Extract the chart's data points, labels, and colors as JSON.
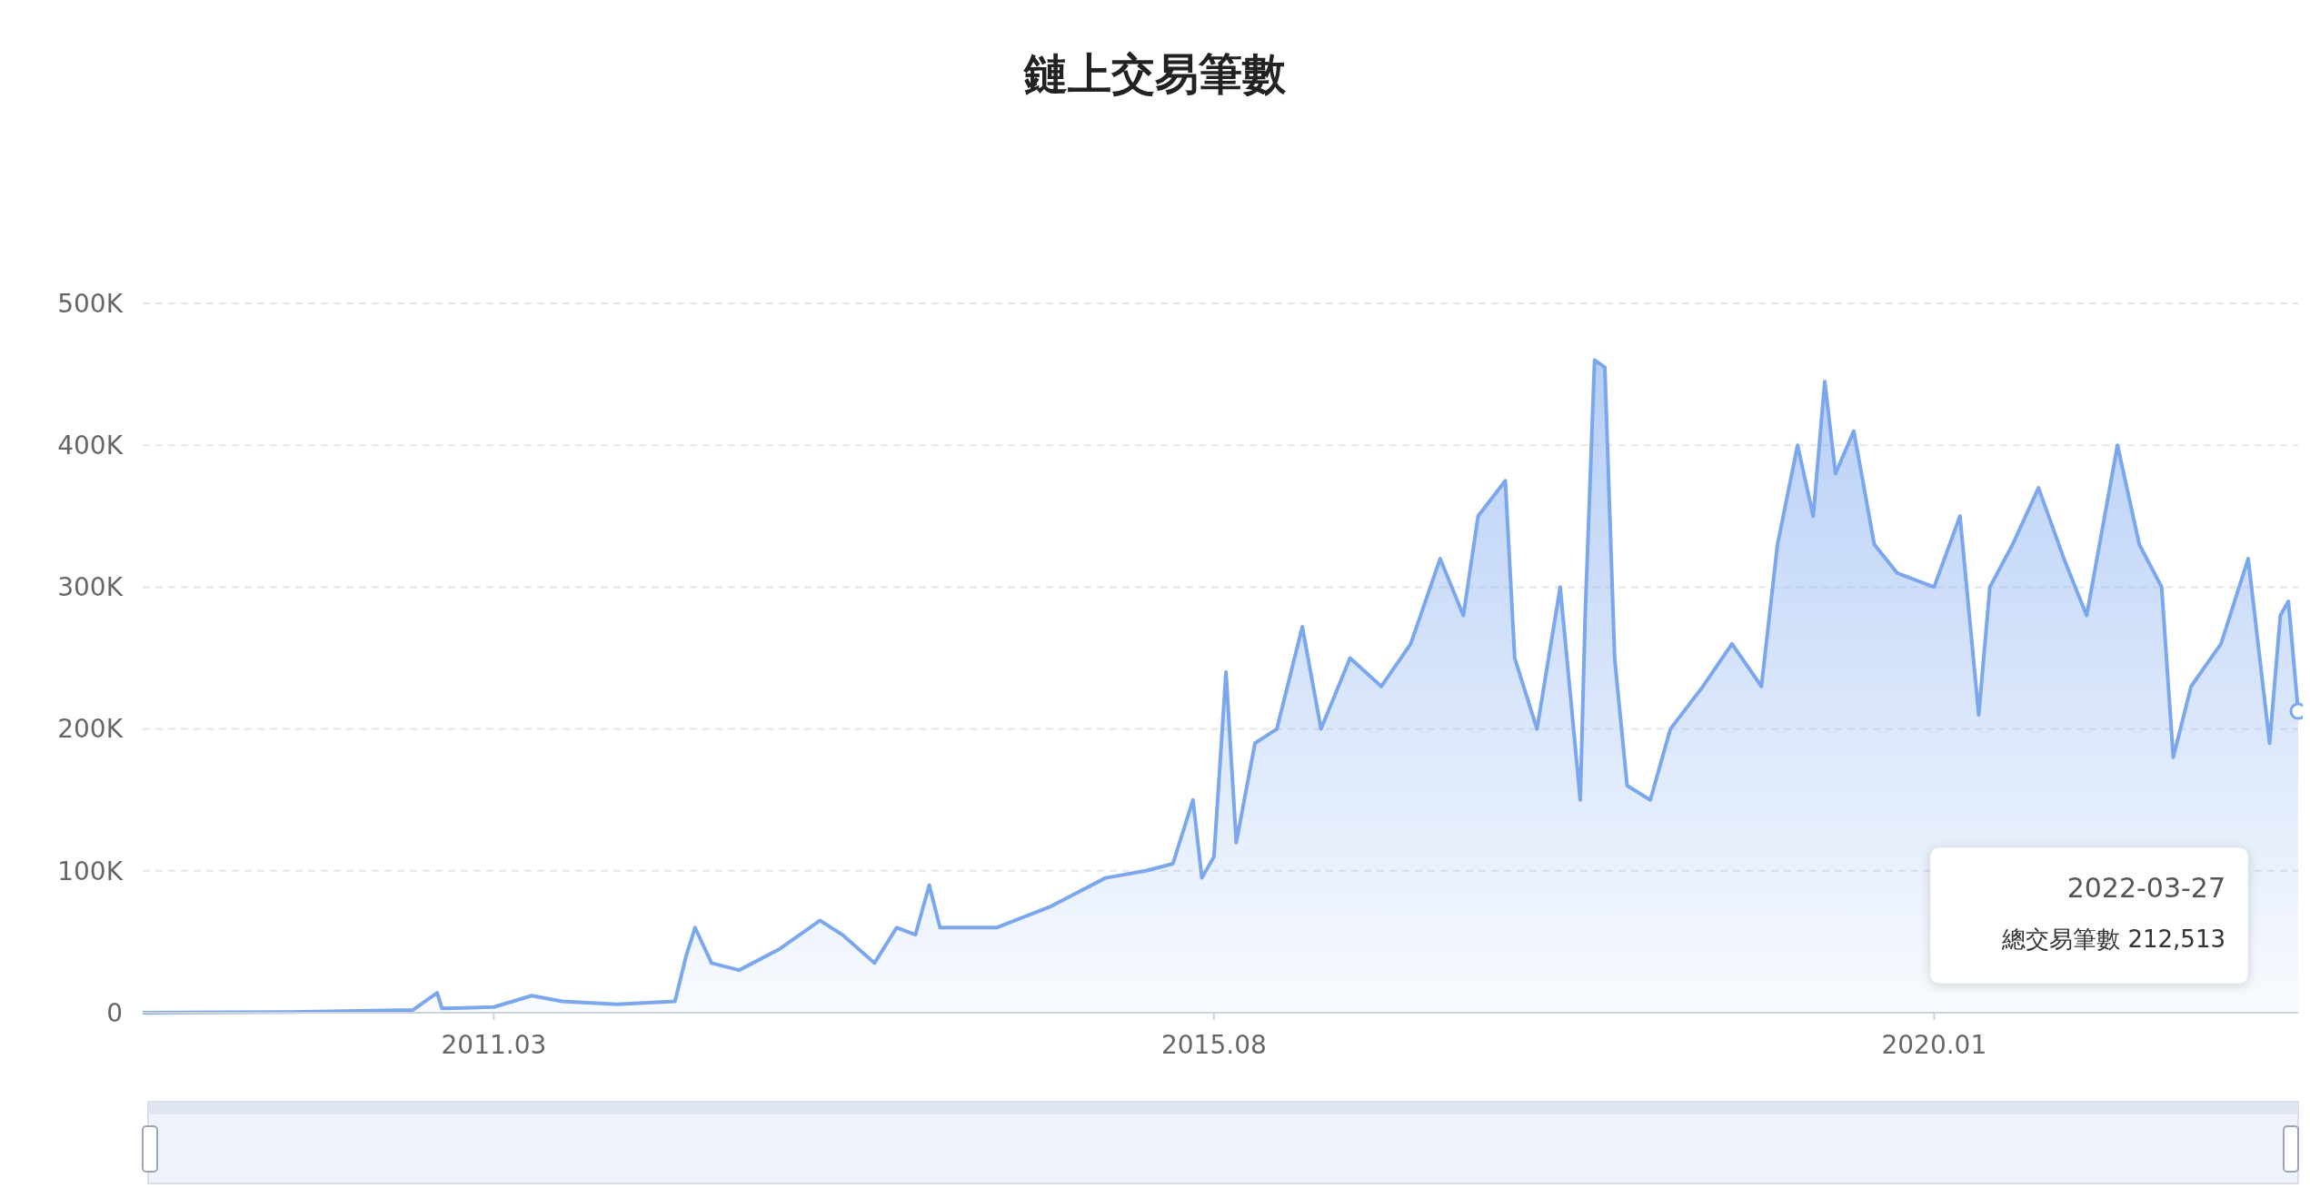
{
  "chart_data": {
    "type": "area",
    "title": "鏈上交易筆數",
    "grid": "y",
    "xlim": [
      "2009-01-03",
      "2022-03-27"
    ],
    "ylim": [
      0,
      500000
    ],
    "yticks": [
      0,
      {
        "value": 100000,
        "label": "100K"
      },
      {
        "value": 200000,
        "label": "200K"
      },
      {
        "value": 300000,
        "label": "300K"
      },
      {
        "value": 400000,
        "label": "400K"
      },
      {
        "value": 500000,
        "label": "500K"
      }
    ],
    "xticks": [
      {
        "value": "2011-03-01",
        "label": "2011.03"
      },
      {
        "value": "2015-08-01",
        "label": "2015.08"
      },
      {
        "value": "2020-01-01",
        "label": "2020.01"
      }
    ],
    "x": [
      "2009-01-03",
      "2009-12-01",
      "2010-09-01",
      "2010-10-25",
      "2010-11-05",
      "2011-03-01",
      "2011-05-25",
      "2011-08-01",
      "2011-12-01",
      "2012-04-10",
      "2012-05-05",
      "2012-05-25",
      "2012-07-01",
      "2012-09-01",
      "2012-12-01",
      "2013-03-01",
      "2013-04-20",
      "2013-07-01",
      "2013-08-20",
      "2013-10-01",
      "2013-11-01",
      "2013-11-25",
      "2014-04-01",
      "2014-08-01",
      "2014-12-01",
      "2015-03-01",
      "2015-05-01",
      "2015-06-15",
      "2015-07-05",
      "2015-08-01",
      "2015-08-28",
      "2015-09-20",
      "2015-11-01",
      "2015-12-20",
      "2016-02-15",
      "2016-03-28",
      "2016-06-01",
      "2016-08-10",
      "2016-10-15",
      "2016-12-20",
      "2017-02-10",
      "2017-03-15",
      "2017-05-15",
      "2017-06-05",
      "2017-07-25",
      "2017-09-15",
      "2017-10-30",
      "2017-11-10",
      "2017-12-01",
      "2017-12-24",
      "2018-01-15",
      "2018-02-12",
      "2018-04-05",
      "2018-05-20",
      "2018-08-01",
      "2018-10-05",
      "2018-12-10",
      "2019-01-15",
      "2019-03-01",
      "2019-04-05",
      "2019-05-01",
      "2019-05-25",
      "2019-07-05",
      "2019-08-20",
      "2019-10-10",
      "2020-01-01",
      "2020-02-28",
      "2020-04-10",
      "2020-05-05",
      "2020-06-25",
      "2020-08-22",
      "2020-10-18",
      "2020-12-08",
      "2021-02-15",
      "2021-04-05",
      "2021-05-25",
      "2021-06-20",
      "2021-07-30",
      "2021-10-05",
      "2021-12-05",
      "2022-01-22",
      "2022-02-15",
      "2022-03-05",
      "2022-03-27"
    ],
    "series": [
      {
        "color": "#7ba7ef",
        "values": [
          0,
          500,
          2000,
          14000,
          3000,
          4000,
          12000,
          8000,
          6000,
          8000,
          40000,
          60000,
          35000,
          30000,
          45000,
          65000,
          55000,
          35000,
          60000,
          55000,
          90000,
          60000,
          60000,
          75000,
          95000,
          100000,
          105000,
          150000,
          95000,
          110000,
          240000,
          120000,
          190000,
          200000,
          272000,
          200000,
          250000,
          230000,
          260000,
          320000,
          280000,
          350000,
          375000,
          250000,
          200000,
          300000,
          150000,
          280000,
          460000,
          455000,
          250000,
          160000,
          150000,
          200000,
          230000,
          260000,
          230000,
          330000,
          400000,
          350000,
          445000,
          380000,
          410000,
          330000,
          310000,
          300000,
          350000,
          210000,
          300000,
          330000,
          370000,
          320000,
          280000,
          400000,
          330000,
          300000,
          180000,
          230000,
          260000,
          320000,
          190000,
          280000,
          290000,
          212513
        ]
      }
    ],
    "annotations": [
      "2022-03-27",
      "總交易筆數 212,513"
    ]
  }
}
